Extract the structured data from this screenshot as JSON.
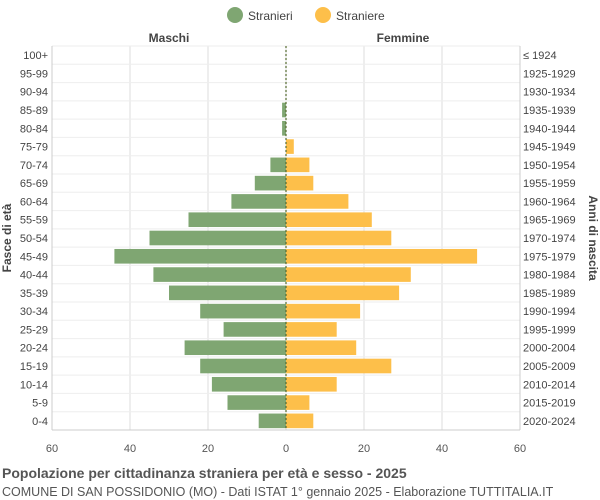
{
  "chart_data": {
    "type": "bar",
    "orientation": "horizontal-pyramid",
    "legend": {
      "position": "top-center",
      "items": [
        {
          "name": "Stranieri",
          "color": "#7fa672"
        },
        {
          "name": "Straniere",
          "color": "#fdbf4a"
        }
      ]
    },
    "side_labels": {
      "left": "Maschi",
      "right": "Femmine"
    },
    "ylabel_left": "Fasce di età",
    "ylabel_right": "Anni di nascita",
    "xlim": [
      -60,
      60
    ],
    "x_ticks": [
      "60",
      "40",
      "20",
      "0",
      "20",
      "40",
      "60"
    ],
    "grid": true,
    "categories": [
      "100+",
      "95-99",
      "90-94",
      "85-89",
      "80-84",
      "75-79",
      "70-74",
      "65-69",
      "60-64",
      "55-59",
      "50-54",
      "45-49",
      "40-44",
      "35-39",
      "30-34",
      "25-29",
      "20-24",
      "15-19",
      "10-14",
      "5-9",
      "0-4"
    ],
    "birth_years": [
      "≤ 1924",
      "1925-1929",
      "1930-1934",
      "1935-1939",
      "1940-1944",
      "1945-1949",
      "1950-1954",
      "1955-1959",
      "1960-1964",
      "1965-1969",
      "1970-1974",
      "1975-1979",
      "1980-1984",
      "1985-1989",
      "1990-1994",
      "1995-1999",
      "2000-2004",
      "2005-2009",
      "2010-2014",
      "2015-2019",
      "2020-2024"
    ],
    "series": [
      {
        "name": "Stranieri",
        "color": "#7fa672",
        "values": [
          0,
          0,
          0,
          1,
          1,
          0,
          4,
          8,
          14,
          25,
          35,
          44,
          34,
          30,
          22,
          16,
          26,
          22,
          19,
          15,
          7
        ]
      },
      {
        "name": "Straniere",
        "color": "#fdbf4a",
        "values": [
          0,
          0,
          0,
          0,
          0,
          2,
          6,
          7,
          16,
          22,
          27,
          49,
          32,
          29,
          19,
          13,
          18,
          27,
          13,
          6,
          7
        ]
      }
    ]
  },
  "footer": {
    "title": "Popolazione per cittadinanza straniera per età e sesso - 2025",
    "subtitle": "COMUNE DI SAN POSSIDONIO (MO) - Dati ISTAT 1° gennaio 2025 - Elaborazione TUTTITALIA.IT"
  }
}
